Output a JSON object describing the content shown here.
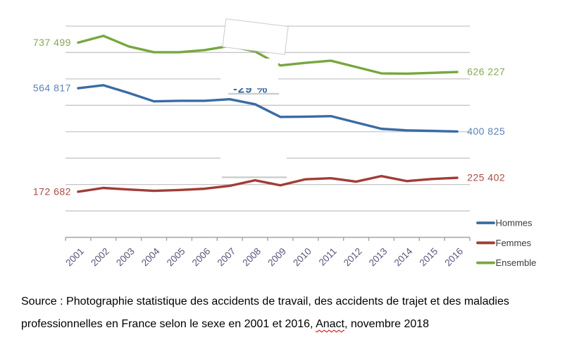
{
  "chart_data": {
    "type": "line",
    "title": "",
    "xlabel": "",
    "ylabel": "",
    "x": [
      2001,
      2002,
      2003,
      2004,
      2005,
      2006,
      2007,
      2008,
      2009,
      2010,
      2011,
      2012,
      2013,
      2014,
      2015,
      2016
    ],
    "ylim": [
      0,
      800000
    ],
    "gridlines": "horizontal every 100000, no y-axis tick labels",
    "legend_position": "right",
    "series": [
      {
        "name": "Hommes",
        "color": "#3a6ba5",
        "label_color": "#5b82b3",
        "start_label": "564 817",
        "end_label": "400 825",
        "values": [
          564817,
          576000,
          547000,
          515000,
          517000,
          517000,
          523000,
          504000,
          456000,
          457000,
          459000,
          435000,
          411000,
          405000,
          403000,
          400825
        ]
      },
      {
        "name": "Femmes",
        "color": "#a23c36",
        "label_color": "#ab4a42",
        "start_label": "172 682",
        "end_label": "225 402",
        "values": [
          172682,
          187000,
          181000,
          176000,
          179000,
          184000,
          195000,
          216000,
          197000,
          220000,
          224000,
          211000,
          232000,
          213000,
          221000,
          225402
        ]
      },
      {
        "name": "Ensemble",
        "color": "#77a73e",
        "label_color": "#85a850",
        "start_label": "737 499",
        "end_label": "626 227",
        "values": [
          737499,
          763000,
          723000,
          701000,
          701000,
          709000,
          725000,
          704000,
          651000,
          661000,
          669000,
          645000,
          621000,
          620000,
          623000,
          626227
        ]
      }
    ],
    "axis_tick_label_color": "#56567b",
    "legend_text_color": "#3b3b3b"
  },
  "annotations": {
    "clipped_label": {
      "text": "-29 %",
      "color": "#3a6ba5",
      "note": "mostly hidden under white box, only glyph bottoms visible"
    }
  },
  "caption": {
    "line1": "Source : Photographie statistique des accidents de travail, des accidents de trajet et des maladies",
    "line2_prefix": "professionnelles en France selon le sexe en 2001 et 2016, ",
    "anact": "Anact",
    "line2_suffix": ", novembre 2018"
  }
}
